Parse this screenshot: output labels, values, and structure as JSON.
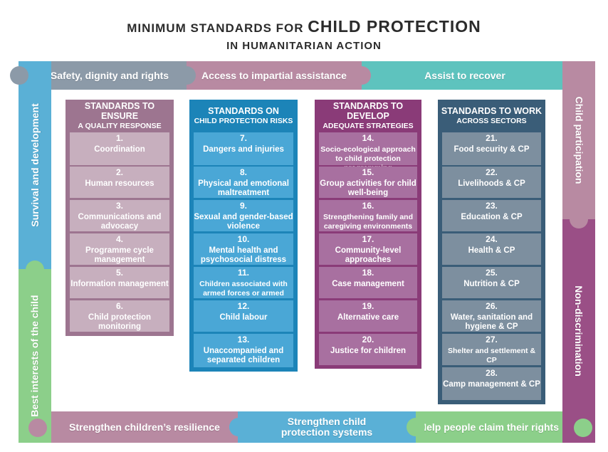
{
  "title": {
    "line1_prefix": "Minimum standards for ",
    "line1_main": "Child Protection",
    "line2": "in Humanitarian Action"
  },
  "frame": {
    "top": [
      "Safety, dignity and rights",
      "Access to impartial assistance",
      "Assist to recover"
    ],
    "left": [
      "Survival and development",
      "Best interests of the child"
    ],
    "right": [
      "Child participation",
      "Non-discrimination"
    ],
    "bottom": [
      "Strengthen children’s resilience",
      "Strengthen child protection systems",
      "Help people claim their rights"
    ]
  },
  "colors": {
    "grey": "#8c9aa8",
    "mauve": "#b88aa2",
    "teal": "#5ec3be",
    "green": "#8ccf8a",
    "blue": "#5ab0d6",
    "purple": "#9a4f86",
    "col1_head": "#9d7590",
    "col1_cell": "#c7afbe",
    "col2_head": "#1c84b8",
    "col2_cell": "#4aa7d6",
    "col3_head": "#8a3b78",
    "col3_cell": "#a870a0",
    "col4_head": "#3a5d78",
    "col4_cell": "#7d8f9f"
  },
  "columns": [
    {
      "head_first": "Standards to ensure",
      "head_second": "a quality response",
      "cells": [
        {
          "num": "1.",
          "text": "Coordination"
        },
        {
          "num": "2.",
          "text": "Human resources"
        },
        {
          "num": "3.",
          "text": "Communications and advocacy"
        },
        {
          "num": "4.",
          "text": "Programme cycle management"
        },
        {
          "num": "5.",
          "text": "Information management"
        },
        {
          "num": "6.",
          "text": "Child protection monitoring"
        }
      ]
    },
    {
      "head_first": "Standards on",
      "head_second": "child protection risks",
      "cells": [
        {
          "num": "7.",
          "text": "Dangers and injuries"
        },
        {
          "num": "8.",
          "text": "Physical and emotional maltreatment"
        },
        {
          "num": "9.",
          "text": "Sexual and gender-based violence"
        },
        {
          "num": "10.",
          "text": "Mental health and psychosocial distress"
        },
        {
          "num": "11.",
          "text": "Children associated with armed forces or armed groups"
        },
        {
          "num": "12.",
          "text": "Child labour"
        },
        {
          "num": "13.",
          "text": "Unaccompanied and separated children"
        }
      ]
    },
    {
      "head_first": "Standards to develop",
      "head_second": "adequate strategies",
      "cells": [
        {
          "num": "14.",
          "text": "Socio-ecological approach to child protection programming"
        },
        {
          "num": "15.",
          "text": "Group activities for child well-being"
        },
        {
          "num": "16.",
          "text": "Strengthening family and caregiving environments"
        },
        {
          "num": "17.",
          "text": "Community-level approaches"
        },
        {
          "num": "18.",
          "text": "Case management"
        },
        {
          "num": "19.",
          "text": "Alternative care"
        },
        {
          "num": "20.",
          "text": "Justice for children"
        }
      ]
    },
    {
      "head_first": "Standards to work",
      "head_second": "across sectors",
      "cells": [
        {
          "num": "21.",
          "text": "Food security & CP"
        },
        {
          "num": "22.",
          "text": "Livelihoods & CP"
        },
        {
          "num": "23.",
          "text": "Education & CP"
        },
        {
          "num": "24.",
          "text": "Health & CP"
        },
        {
          "num": "25.",
          "text": "Nutrition & CP"
        },
        {
          "num": "26.",
          "text": "Water, sanitation and hygiene & CP"
        },
        {
          "num": "27.",
          "text": "Shelter and settlement & CP"
        },
        {
          "num": "28.",
          "text": "Camp management & CP"
        }
      ]
    }
  ]
}
